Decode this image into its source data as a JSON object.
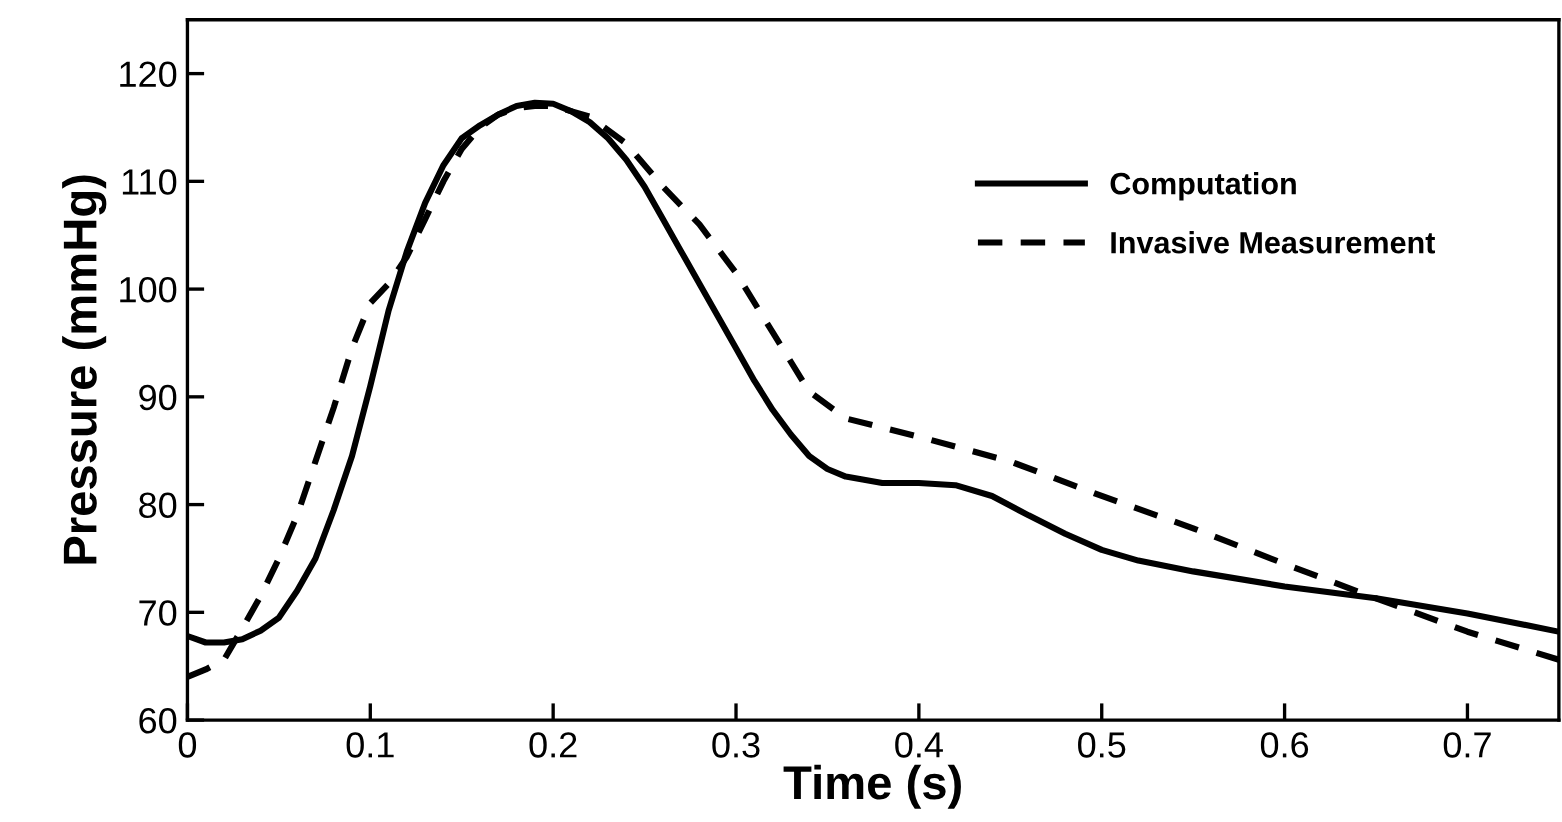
{
  "chart_data": {
    "type": "line",
    "xlabel": "Time (s)",
    "ylabel": "Pressure (mmHg)",
    "xlim": [
      0,
      0.75
    ],
    "xticks": [
      0,
      0.1,
      0.2,
      0.3,
      0.4,
      0.5,
      0.6,
      0.7
    ],
    "ylim": [
      60,
      125
    ],
    "yticks": [
      60,
      70,
      80,
      90,
      100,
      110,
      120
    ],
    "grid": false,
    "legend": "right",
    "marker": "none",
    "series": [
      {
        "name": "Computation",
        "color": "#000000",
        "line_style": "solid",
        "x": [
          0,
          0.01,
          0.02,
          0.03,
          0.04,
          0.05,
          0.06,
          0.07,
          0.08,
          0.09,
          0.1,
          0.11,
          0.12,
          0.13,
          0.14,
          0.15,
          0.16,
          0.17,
          0.18,
          0.19,
          0.2,
          0.21,
          0.22,
          0.23,
          0.24,
          0.25,
          0.26,
          0.27,
          0.28,
          0.29,
          0.3,
          0.31,
          0.32,
          0.33,
          0.34,
          0.35,
          0.36,
          0.38,
          0.4,
          0.42,
          0.44,
          0.46,
          0.48,
          0.5,
          0.52,
          0.55,
          0.6,
          0.65,
          0.7,
          0.75
        ],
        "values": [
          67.8,
          67.2,
          67.2,
          67.5,
          68.3,
          69.5,
          72,
          75,
          79.5,
          84.5,
          91,
          98,
          103.5,
          108,
          111.5,
          114,
          115.2,
          116.2,
          117,
          117.3,
          117.2,
          116.5,
          115.5,
          114,
          112,
          109.5,
          106.5,
          103.5,
          100.5,
          97.5,
          94.5,
          91.5,
          88.8,
          86.5,
          84.5,
          83.3,
          82.6,
          82,
          82,
          81.8,
          80.8,
          79,
          77.3,
          75.8,
          74.8,
          73.8,
          72.4,
          71.3,
          69.9,
          68.2
        ]
      },
      {
        "name": "Invasive Measurement",
        "color": "#000000",
        "line_style": "dashed",
        "x": [
          0,
          0.01,
          0.02,
          0.03,
          0.04,
          0.05,
          0.06,
          0.07,
          0.08,
          0.09,
          0.1,
          0.11,
          0.12,
          0.13,
          0.14,
          0.15,
          0.16,
          0.17,
          0.18,
          0.19,
          0.2,
          0.22,
          0.24,
          0.26,
          0.28,
          0.3,
          0.32,
          0.34,
          0.36,
          0.4,
          0.45,
          0.5,
          0.55,
          0.6,
          0.65,
          0.7,
          0.75
        ],
        "values": [
          64,
          64.7,
          65.6,
          68.5,
          71.5,
          75,
          79,
          84,
          89,
          94.5,
          98.7,
          100.5,
          103,
          106.5,
          110,
          113,
          115,
          116.2,
          116.8,
          117,
          117,
          116,
          113.5,
          109.5,
          106,
          101.5,
          96,
          90.5,
          88,
          86.3,
          84,
          80.8,
          77.8,
          74.5,
          71.3,
          68.2,
          65.6
        ]
      }
    ]
  }
}
